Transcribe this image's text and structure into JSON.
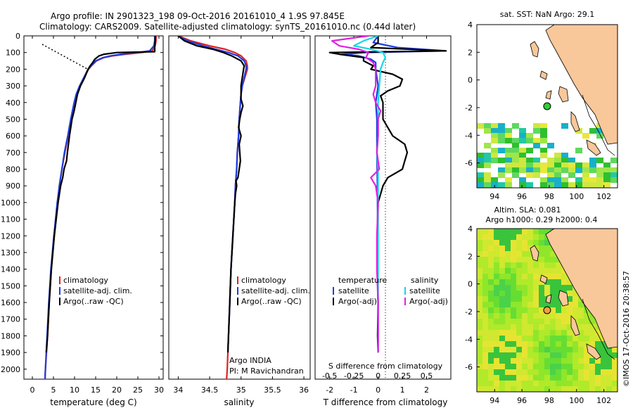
{
  "header": {
    "title": "Argo profile: IN 2901323_198 09-Oct-2016 20161010_4 1.9S 97.845E",
    "subtitle": "Climatology: CARS2009. Satellite-adjusted climatology: synTS_20161010.nc (0.44d later)"
  },
  "colors": {
    "climatology": "#e02020",
    "satellite": "#1c3ce0",
    "argo": "#000000",
    "sat_salinity": "#19d6e6",
    "argo_salinity_adj": "#e020e0",
    "land": "#f8c79a"
  },
  "chart_data": [
    {
      "type": "line",
      "xlabel": "temperature (deg C)",
      "xlim": [
        -2,
        31
      ],
      "xticks": [
        0,
        5,
        10,
        15,
        20,
        25,
        30
      ],
      "ylim": [
        2060,
        0
      ],
      "yticks": [
        0,
        100,
        200,
        300,
        400,
        500,
        600,
        700,
        800,
        900,
        1000,
        1100,
        1200,
        1300,
        1400,
        1500,
        1600,
        1700,
        1800,
        1900,
        2000
      ],
      "legend": [
        "climatology",
        "satellite-adj. clim.",
        "Argo(..raw -QC)"
      ],
      "series": [
        {
          "name": "climatology",
          "color": "#e02020",
          "depth": [
            0,
            30,
            60,
            90,
            100,
            110,
            120,
            130,
            150,
            180,
            200,
            250,
            300,
            350,
            400,
            450,
            500,
            600,
            700,
            800,
            900,
            1000,
            1200,
            1400,
            1600,
            1800,
            2000,
            2060
          ],
          "values": [
            29.3,
            29.3,
            29.1,
            28.4,
            26.0,
            22.0,
            19.0,
            17.0,
            15.2,
            14.0,
            13.3,
            12.3,
            11.3,
            10.5,
            10.0,
            9.6,
            9.2,
            8.5,
            7.7,
            7.0,
            6.4,
            6.0,
            5.2,
            4.5,
            4.0,
            3.6,
            3.1,
            3.0
          ]
        },
        {
          "name": "satellite-adj. clim.",
          "color": "#1c3ce0",
          "depth": [
            0,
            30,
            60,
            90,
            100,
            110,
            120,
            130,
            150,
            180,
            200,
            250,
            300,
            350,
            400,
            450,
            500,
            600,
            700,
            800,
            900,
            1000,
            1200,
            1400,
            1600,
            1800,
            2000,
            2060
          ],
          "values": [
            29.0,
            29.0,
            28.8,
            27.8,
            25.0,
            21.0,
            18.5,
            16.8,
            15.0,
            13.9,
            13.2,
            12.2,
            11.2,
            10.4,
            9.9,
            9.5,
            9.1,
            8.4,
            7.6,
            7.0,
            6.4,
            5.9,
            5.1,
            4.4,
            3.9,
            3.5,
            3.1,
            3.0
          ]
        },
        {
          "name": "Argo(..raw -QC)",
          "color": "#000000",
          "depth": [
            0,
            30,
            60,
            90,
            95,
            100,
            110,
            120,
            140,
            160,
            180,
            200,
            250,
            300,
            350,
            400,
            450,
            500,
            600,
            700,
            750,
            800,
            850,
            900,
            1000,
            1200,
            1400,
            1600,
            1800,
            1900
          ],
          "values": [
            29.1,
            29.1,
            29.0,
            29.0,
            29.0,
            20.0,
            17.0,
            15.8,
            14.8,
            14.3,
            13.7,
            13.2,
            12.4,
            11.4,
            10.7,
            10.3,
            9.9,
            9.4,
            8.8,
            8.3,
            8.1,
            7.5,
            7.2,
            6.7,
            6.1,
            5.2,
            4.5,
            4.0,
            3.6,
            3.3
          ]
        }
      ]
    },
    {
      "type": "line",
      "xlabel": "salinity",
      "xlim": [
        33.85,
        36.1
      ],
      "xticks": [
        34,
        34.5,
        35,
        35.5,
        36
      ],
      "xticklabels": [
        "34",
        "34.5",
        "35",
        "35.5",
        "36"
      ],
      "ylim": [
        2060,
        0
      ],
      "legend": [
        "climatology",
        "satellite-adj. clim.",
        "Argo(..raw -QC)"
      ],
      "annotations": [
        "Argo INDIA",
        "PI: M Ravichandran"
      ],
      "series": [
        {
          "name": "climatology",
          "color": "#e02020",
          "depth": [
            0,
            30,
            60,
            80,
            100,
            120,
            150,
            180,
            200,
            250,
            300,
            350,
            400,
            500,
            600,
            700,
            800,
            900,
            1000,
            1200,
            1400,
            1600,
            1800,
            2000,
            2060
          ],
          "values": [
            34.0,
            34.2,
            34.5,
            34.75,
            34.9,
            35.0,
            35.08,
            35.1,
            35.1,
            35.06,
            35.02,
            35.0,
            34.99,
            34.97,
            34.96,
            34.94,
            34.93,
            34.91,
            34.9,
            34.87,
            34.84,
            34.82,
            34.8,
            34.78,
            34.77
          ]
        },
        {
          "name": "satellite-adj. clim.",
          "color": "#1c3ce0",
          "depth": [
            0,
            30,
            60,
            80,
            100,
            120,
            150,
            180,
            200,
            250,
            300,
            350,
            400,
            500,
            600,
            700,
            800,
            900,
            1000,
            1200,
            1400,
            1600,
            1800,
            1900
          ],
          "values": [
            34.0,
            34.15,
            34.4,
            34.6,
            34.8,
            34.95,
            35.05,
            35.08,
            35.08,
            35.05,
            35.02,
            35.0,
            34.99,
            34.97,
            34.96,
            34.94,
            34.93,
            34.91,
            34.9,
            34.87,
            34.84,
            34.82,
            34.8,
            34.79
          ]
        },
        {
          "name": "Argo(..raw -QC)",
          "color": "#000000",
          "depth": [
            0,
            30,
            60,
            80,
            100,
            120,
            150,
            180,
            200,
            250,
            300,
            350,
            380,
            420,
            460,
            500,
            550,
            600,
            650,
            700,
            750,
            800,
            850,
            870,
            900,
            950,
            1000,
            1200,
            1400,
            1600,
            1800,
            1900
          ],
          "values": [
            34.0,
            34.1,
            34.3,
            34.55,
            34.72,
            34.85,
            35.0,
            35.05,
            35.04,
            35.02,
            35.0,
            35.0,
            35.0,
            35.03,
            35.0,
            34.98,
            34.96,
            35.0,
            34.97,
            34.98,
            34.99,
            34.97,
            34.95,
            34.92,
            34.93,
            34.91,
            34.9,
            34.87,
            34.84,
            34.82,
            34.8,
            34.79
          ]
        }
      ]
    },
    {
      "type": "line",
      "xlabel": "T difference from climatology",
      "xlabel_top": "S difference from climatology",
      "xlim": [
        -2.6,
        3
      ],
      "xticks": [
        -2,
        -1,
        0,
        1,
        2
      ],
      "xticklabels": [
        "-2",
        "-1",
        "0",
        "1",
        "2"
      ],
      "sticks": [
        -2,
        -1,
        0,
        1,
        2
      ],
      "sticklabels": [
        "-0.5",
        "-0.25",
        "0",
        "0.25",
        "0.5"
      ],
      "ylim": [
        2060,
        0
      ],
      "legend": {
        "temperature": "temperature",
        "salinity": "salinity",
        "entries": [
          "satellite",
          "Argo(-adj)",
          "satellite",
          "Argo(-adj)"
        ]
      },
      "series": [
        {
          "name": "satellite",
          "color": "#1c3ce0",
          "depth": [
            0,
            40,
            70,
            90,
            100,
            110,
            120,
            140,
            160,
            200,
            300,
            400,
            500,
            700,
            900,
            1100,
            1400,
            1700,
            1900
          ],
          "values": [
            0.0,
            -0.2,
            0.8,
            2.8,
            -0.5,
            -1.5,
            -0.8,
            -0.3,
            -0.1,
            -0.1,
            0.0,
            -0.1,
            -0.05,
            -0.05,
            -0.03,
            -0.02,
            -0.01,
            0.0,
            0.0
          ]
        },
        {
          "name": "Argo(-adj)",
          "color": "#000000",
          "depth": [
            0,
            40,
            70,
            90,
            100,
            110,
            130,
            150,
            180,
            200,
            230,
            260,
            300,
            330,
            360,
            400,
            450,
            500,
            550,
            600,
            650,
            700,
            750,
            800,
            850,
            900,
            950,
            1000,
            1200,
            1400,
            1600,
            1800,
            1900
          ],
          "values": [
            0.0,
            0.0,
            -0.3,
            2.8,
            -2.0,
            -1.6,
            -0.6,
            -0.6,
            -0.2,
            -0.3,
            0.6,
            1.0,
            0.9,
            0.4,
            0.1,
            0.2,
            0.2,
            0.2,
            0.4,
            0.6,
            1.1,
            1.2,
            1.1,
            1.0,
            0.4,
            0.2,
            0.1,
            0.0,
            -0.02,
            -0.03,
            0.0,
            -0.02,
            0.0
          ]
        },
        {
          "name": "satellite S",
          "color": "#19d6e6",
          "depth": [
            0,
            30,
            60,
            80,
            100,
            130,
            160,
            200,
            300,
            400,
            500,
            600,
            700,
            800,
            900,
            1000,
            1200,
            1500,
            1800,
            1900
          ],
          "values": [
            0.0,
            -0.6,
            -1.0,
            -0.3,
            0.2,
            0.3,
            0.2,
            0.1,
            0.05,
            0.0,
            0.0,
            0.0,
            -0.05,
            0.0,
            0.0,
            0.0,
            0.0,
            0.0,
            0.0,
            0.0
          ]
        },
        {
          "name": "Argo(-adj) S",
          "color": "#e020e0",
          "depth": [
            0,
            30,
            60,
            80,
            100,
            130,
            160,
            200,
            300,
            350,
            400,
            450,
            500,
            600,
            700,
            800,
            850,
            900,
            1000,
            1200,
            1400,
            1600,
            1800,
            1900
          ],
          "values": [
            -0.4,
            -1.9,
            -1.6,
            -0.8,
            -0.4,
            -0.5,
            -0.2,
            -0.1,
            -0.1,
            -0.2,
            -0.1,
            0.1,
            0.0,
            0.0,
            -0.05,
            0.05,
            -0.3,
            -0.1,
            0.0,
            -0.05,
            -0.05,
            0.0,
            0.0,
            0.0
          ]
        }
      ]
    },
    {
      "type": "heatmap",
      "title": "sat. SST: NaN Argo: 29.1",
      "xlim": [
        92.7,
        103
      ],
      "ylim": [
        -7.8,
        4
      ],
      "xticks": [
        94,
        96,
        98,
        100,
        102
      ],
      "yticks": [
        4,
        2,
        0,
        -2,
        -4,
        -6
      ],
      "marker": {
        "lon": 97.845,
        "lat": -1.9
      }
    },
    {
      "type": "heatmap",
      "title": "Altim. SLA: 0.081",
      "subtitle": "Argo h1000: 0.29 h2000: 0.4",
      "xlim": [
        92.7,
        103
      ],
      "ylim": [
        -7.8,
        4
      ],
      "xticks": [
        94,
        96,
        98,
        100,
        102
      ],
      "yticks": [
        4,
        2,
        0,
        -2,
        -4,
        -6
      ],
      "marker": {
        "lon": 97.845,
        "lat": -1.9
      }
    }
  ],
  "credit": "©IMOS 17-Oct-2016 20:38:57"
}
